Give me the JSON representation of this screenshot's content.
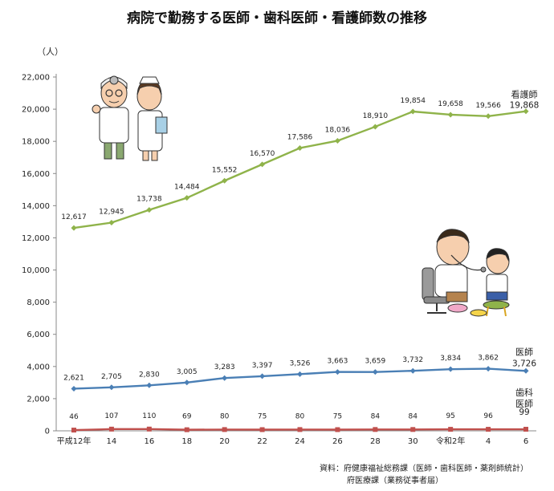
{
  "chart_data": {
    "type": "line",
    "title": "病院で勤務する医師・歯科医師・看護師数の推移",
    "unit_label": "（人）",
    "categories": [
      "平成12年",
      "14",
      "16",
      "18",
      "20",
      "22",
      "24",
      "26",
      "28",
      "30",
      "令和2年",
      "4",
      "6"
    ],
    "ylim": [
      0,
      22000
    ],
    "yticks": [
      "0",
      "2,000",
      "4,000",
      "6,000",
      "8,000",
      "10,000",
      "12,000",
      "14,000",
      "16,000",
      "18,000",
      "20,000",
      "22,000"
    ],
    "grid": false,
    "series": [
      {
        "name": "看護師",
        "color": "#8fb34a",
        "values": [
          12617,
          12945,
          13738,
          14484,
          15552,
          16570,
          17586,
          18036,
          18910,
          19854,
          19658,
          19566,
          19868
        ],
        "labels": [
          "12,617",
          "12,945",
          "13,738",
          "14,484",
          "15,552",
          "16,570",
          "17,586",
          "18,036",
          "18,910",
          "19,854",
          "19,658",
          "19,566",
          "19,868"
        ]
      },
      {
        "name": "医師",
        "color": "#4a7fb5",
        "values": [
          2621,
          2705,
          2830,
          3005,
          3283,
          3397,
          3526,
          3663,
          3659,
          3732,
          3834,
          3862,
          3726
        ],
        "labels": [
          "2,621",
          "2,705",
          "2,830",
          "3,005",
          "3,283",
          "3,397",
          "3,526",
          "3,663",
          "3,659",
          "3,732",
          "3,834",
          "3,862",
          "3,726"
        ]
      },
      {
        "name": "歯科医師",
        "name_lines": [
          "歯科",
          "医師"
        ],
        "color": "#c0504d",
        "values": [
          46,
          107,
          110,
          69,
          80,
          75,
          80,
          75,
          84,
          84,
          95,
          96,
          99
        ],
        "labels": [
          "46",
          "107",
          "110",
          "69",
          "80",
          "75",
          "80",
          "75",
          "84",
          "84",
          "95",
          "96",
          "99"
        ]
      }
    ]
  },
  "source": {
    "line1": "資料：府健康福祉総務課（医師・歯科医師・薬剤師統計）",
    "line2": "府医療課（業務従事者届）"
  },
  "illustrations": [
    "doctor-and-nurse-illustration",
    "doctor-examining-child-illustration"
  ]
}
